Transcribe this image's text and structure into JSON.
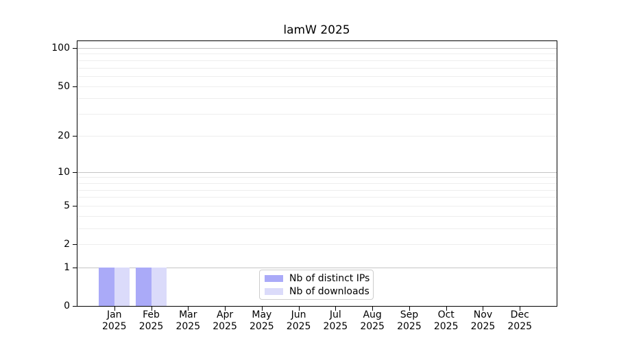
{
  "title": "lamW 2025",
  "chart_data": {
    "type": "bar",
    "title": "lamW 2025",
    "x_categories": [
      {
        "month": "Jan",
        "year": "2025"
      },
      {
        "month": "Feb",
        "year": "2025"
      },
      {
        "month": "Mar",
        "year": "2025"
      },
      {
        "month": "Apr",
        "year": "2025"
      },
      {
        "month": "May",
        "year": "2025"
      },
      {
        "month": "Jun",
        "year": "2025"
      },
      {
        "month": "Jul",
        "year": "2025"
      },
      {
        "month": "Aug",
        "year": "2025"
      },
      {
        "month": "Sep",
        "year": "2025"
      },
      {
        "month": "Oct",
        "year": "2025"
      },
      {
        "month": "Nov",
        "year": "2025"
      },
      {
        "month": "Dec",
        "year": "2025"
      }
    ],
    "series": [
      {
        "name": "Nb of distinct IPs",
        "color": "#aaaaf8",
        "values": [
          1,
          1,
          0,
          0,
          0,
          0,
          0,
          0,
          0,
          0,
          0,
          0
        ]
      },
      {
        "name": "Nb of downloads",
        "color": "#dbdbfa",
        "values": [
          1,
          1,
          0,
          0,
          0,
          0,
          0,
          0,
          0,
          0,
          0,
          0
        ]
      }
    ],
    "y_axis": {
      "scale": "log1p",
      "ticks": [
        0,
        1,
        2,
        5,
        10,
        20,
        50,
        100
      ],
      "major_grid": [
        1,
        10,
        100
      ],
      "minor_grid": [
        2,
        3,
        4,
        5,
        6,
        7,
        8,
        9,
        20,
        30,
        40,
        50,
        60,
        70,
        80,
        90
      ],
      "ylim": [
        0,
        113
      ]
    },
    "legend": {
      "position": "bottom-center",
      "entries": [
        "Nb of distinct IPs",
        "Nb of downloads"
      ]
    },
    "grid": true
  },
  "colors": {
    "bar_dark": "#aaaaf8",
    "bar_light": "#dbdbfa",
    "major_grid": "#c4c4c4",
    "minor_grid": "#ededed",
    "axis": "#000000",
    "legend_border": "#cccccc",
    "text": "#000000"
  }
}
